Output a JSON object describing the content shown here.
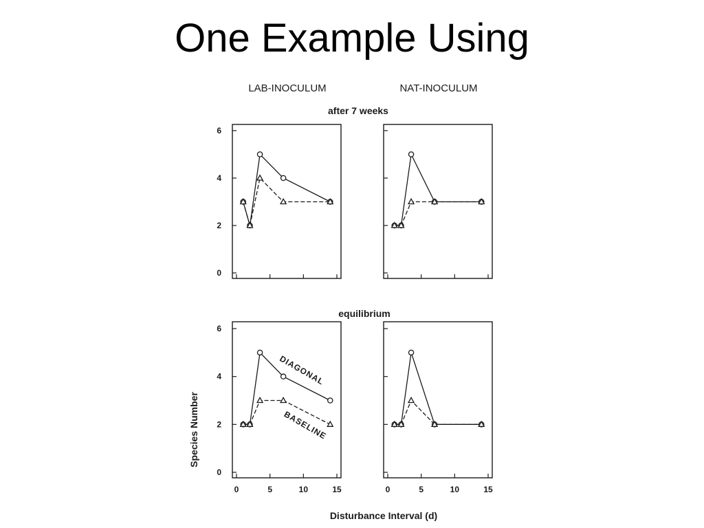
{
  "slide": {
    "title": "One Example Using"
  },
  "figure": {
    "column_labels": [
      "LAB-INOCULUM",
      "NAT-INOCULUM"
    ],
    "row_labels": [
      "after 7 weeks",
      "equilibrium"
    ],
    "xlabel": "Disturbance Interval (d)",
    "ylabel": "Species Number",
    "annotations": [
      "DIAGONAL",
      "BASELINE"
    ],
    "y_ticks": [
      0,
      2,
      4,
      6
    ],
    "x_ticks": [
      0,
      5,
      10,
      15
    ]
  },
  "chart_data": [
    {
      "type": "line",
      "id": "lab-7wk",
      "row": 0,
      "col": 0,
      "xlim": [
        0,
        15
      ],
      "ylim": [
        0,
        6
      ],
      "series": [
        {
          "name": "DIAGONAL",
          "marker": "circle",
          "style": "solid",
          "x": [
            1,
            2,
            3.5,
            7,
            14
          ],
          "y": [
            3,
            2,
            5,
            4,
            3
          ]
        },
        {
          "name": "BASELINE",
          "marker": "triangle",
          "style": "dashed",
          "x": [
            1,
            2,
            3.5,
            7,
            14
          ],
          "y": [
            3,
            2,
            4,
            3,
            3
          ]
        }
      ]
    },
    {
      "type": "line",
      "id": "nat-7wk",
      "row": 0,
      "col": 1,
      "xlim": [
        0,
        15
      ],
      "ylim": [
        0,
        6
      ],
      "series": [
        {
          "name": "DIAGONAL",
          "marker": "circle",
          "style": "solid",
          "x": [
            1,
            2,
            3.5,
            7,
            14
          ],
          "y": [
            2,
            2,
            5,
            3,
            3
          ]
        },
        {
          "name": "BASELINE",
          "marker": "triangle",
          "style": "dashed",
          "x": [
            1,
            2,
            3.5,
            7,
            14
          ],
          "y": [
            2,
            2,
            3,
            3,
            3
          ]
        }
      ]
    },
    {
      "type": "line",
      "id": "lab-eq",
      "row": 1,
      "col": 0,
      "xlim": [
        0,
        15
      ],
      "ylim": [
        0,
        6
      ],
      "series": [
        {
          "name": "DIAGONAL",
          "marker": "circle",
          "style": "solid",
          "x": [
            1,
            2,
            3.5,
            7,
            14
          ],
          "y": [
            2,
            2,
            5,
            4,
            3
          ]
        },
        {
          "name": "BASELINE",
          "marker": "triangle",
          "style": "dashed",
          "x": [
            1,
            2,
            3.5,
            7,
            14
          ],
          "y": [
            2,
            2,
            3,
            3,
            2
          ]
        }
      ]
    },
    {
      "type": "line",
      "id": "nat-eq",
      "row": 1,
      "col": 1,
      "xlim": [
        0,
        15
      ],
      "ylim": [
        0,
        6
      ],
      "series": [
        {
          "name": "DIAGONAL",
          "marker": "circle",
          "style": "solid",
          "x": [
            1,
            2,
            3.5,
            7,
            14
          ],
          "y": [
            2,
            2,
            5,
            2,
            2
          ]
        },
        {
          "name": "BASELINE",
          "marker": "triangle",
          "style": "dashed",
          "x": [
            1,
            2,
            3.5,
            7,
            14
          ],
          "y": [
            2,
            2,
            3,
            2,
            2
          ]
        }
      ]
    }
  ]
}
